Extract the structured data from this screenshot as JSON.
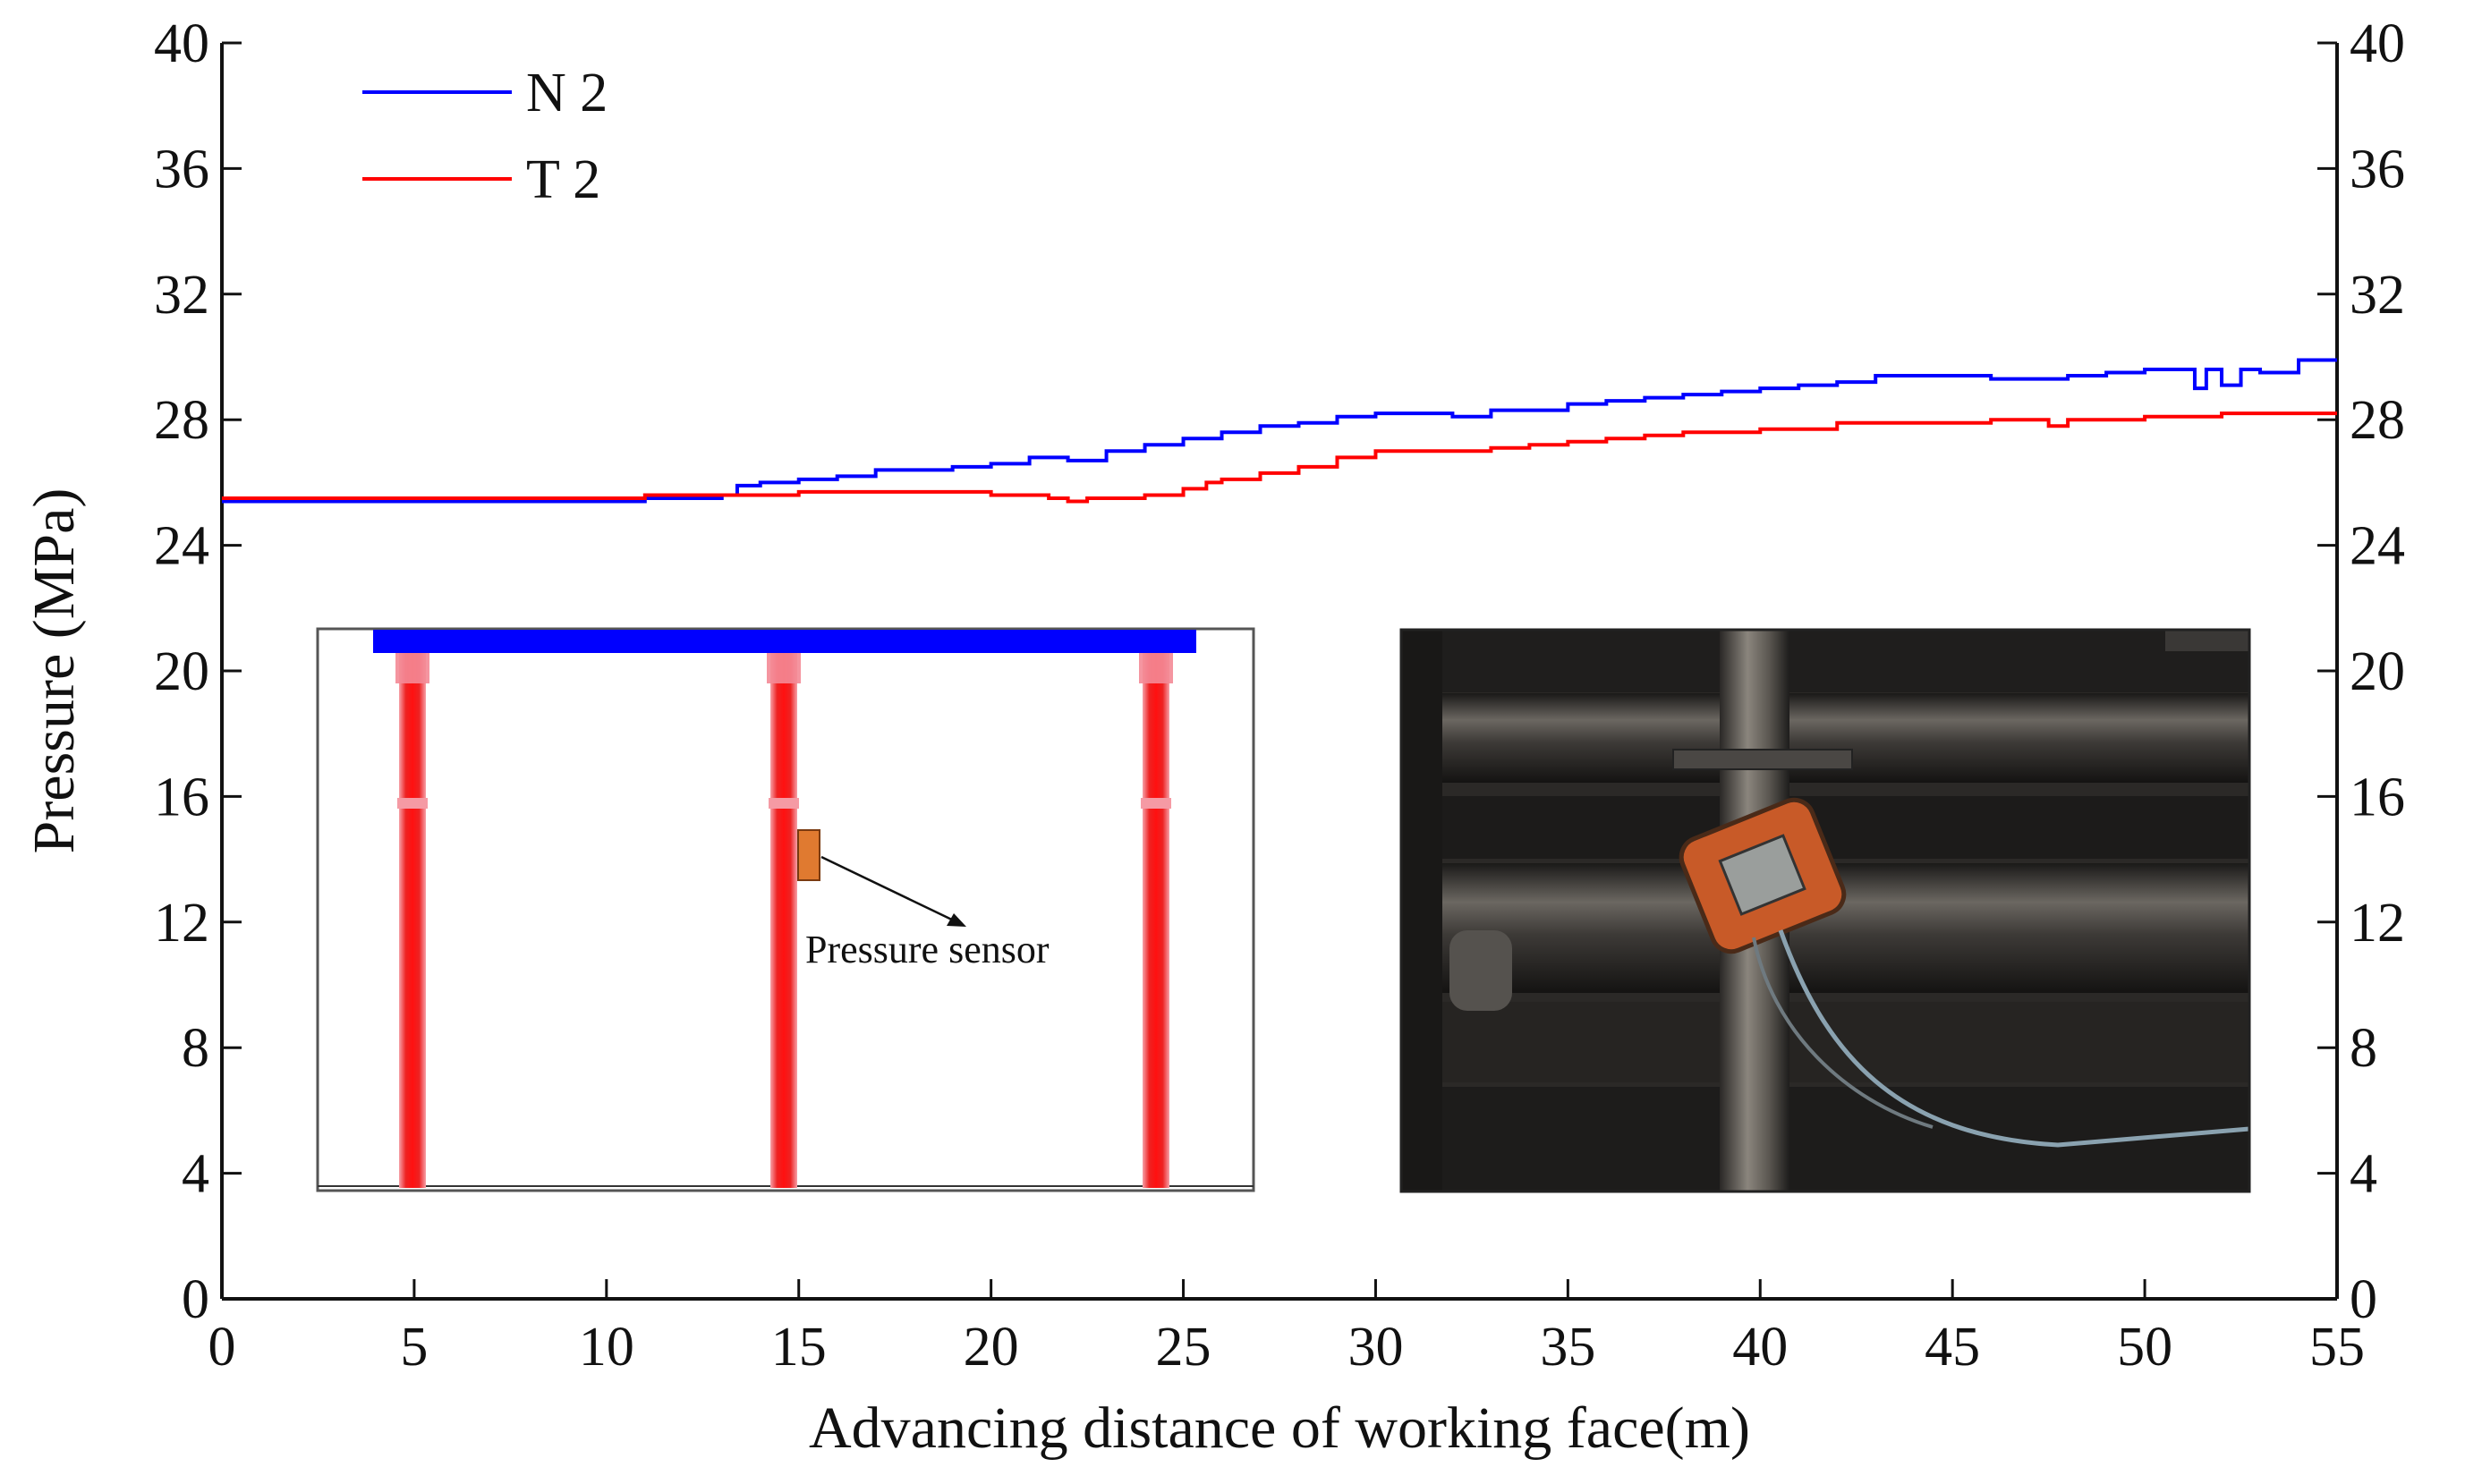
{
  "chart_data": {
    "type": "line",
    "title": "",
    "xlabel": "Advancing distance of working face(m)",
    "ylabel": "Pressure (MPa)",
    "xlim": [
      0,
      55
    ],
    "ylim": [
      0,
      40
    ],
    "y2lim": [
      0,
      40
    ],
    "x_ticks": [
      0,
      5,
      10,
      15,
      20,
      25,
      30,
      35,
      40,
      45,
      50,
      55
    ],
    "y_ticks": [
      0,
      4,
      8,
      12,
      16,
      20,
      24,
      28,
      32,
      36,
      40
    ],
    "grid": false,
    "legend_position": "top-left",
    "series": [
      {
        "name": "N 2",
        "color": "#0000ff",
        "x": [
          0,
          5,
          10,
          11,
          13,
          13.4,
          14,
          15,
          16,
          17,
          18,
          19,
          20,
          21,
          22,
          23,
          24,
          25,
          26,
          27,
          28,
          29,
          30,
          31,
          32,
          33,
          34,
          35,
          36,
          37,
          38,
          39,
          40,
          41,
          42,
          43,
          44,
          45,
          46,
          47,
          48,
          49,
          50,
          51,
          51.3,
          51.6,
          52,
          52.5,
          53,
          54,
          55
        ],
        "values": [
          25.4,
          25.4,
          25.4,
          25.5,
          25.6,
          25.9,
          26.0,
          26.1,
          26.2,
          26.4,
          26.4,
          26.5,
          26.6,
          26.8,
          26.7,
          27.0,
          27.2,
          27.4,
          27.6,
          27.8,
          27.9,
          28.1,
          28.2,
          28.2,
          28.1,
          28.3,
          28.3,
          28.5,
          28.6,
          28.7,
          28.8,
          28.9,
          29.0,
          29.1,
          29.2,
          29.4,
          29.4,
          29.4,
          29.3,
          29.3,
          29.4,
          29.5,
          29.6,
          29.6,
          29.0,
          29.6,
          29.1,
          29.6,
          29.5,
          29.9,
          29.9
        ]
      },
      {
        "name": "T 2",
        "color": "#ff0000",
        "x": [
          0,
          5,
          10,
          11,
          13,
          15,
          16,
          17,
          18,
          19,
          20,
          21,
          21.5,
          22,
          22.5,
          23,
          24,
          25,
          25.6,
          26,
          27,
          28,
          29,
          30,
          31,
          32,
          33,
          34,
          35,
          36,
          37,
          38,
          39,
          40,
          41,
          42,
          43,
          44,
          45,
          46,
          47,
          47.5,
          48,
          49,
          50,
          51,
          52,
          53,
          54,
          55
        ],
        "values": [
          25.5,
          25.5,
          25.5,
          25.6,
          25.6,
          25.7,
          25.7,
          25.7,
          25.7,
          25.7,
          25.6,
          25.6,
          25.5,
          25.4,
          25.5,
          25.5,
          25.6,
          25.8,
          26.0,
          26.1,
          26.3,
          26.5,
          26.8,
          27.0,
          27.0,
          27.0,
          27.1,
          27.2,
          27.3,
          27.4,
          27.5,
          27.6,
          27.6,
          27.7,
          27.7,
          27.9,
          27.9,
          27.9,
          27.9,
          28.0,
          28.0,
          27.8,
          28.0,
          28.0,
          28.1,
          28.1,
          28.2,
          28.2,
          28.2,
          28.2
        ]
      }
    ],
    "annotations": {
      "inset_diagram_label": "Pressure sensor"
    }
  },
  "colors": {
    "axis": "#111111",
    "series_n2": "#0000ff",
    "series_t2": "#ff0000",
    "beam": "#0000ff",
    "prop": "#ee1111",
    "sensor": "#e07a30",
    "photo_bg": "#2c2a28"
  }
}
